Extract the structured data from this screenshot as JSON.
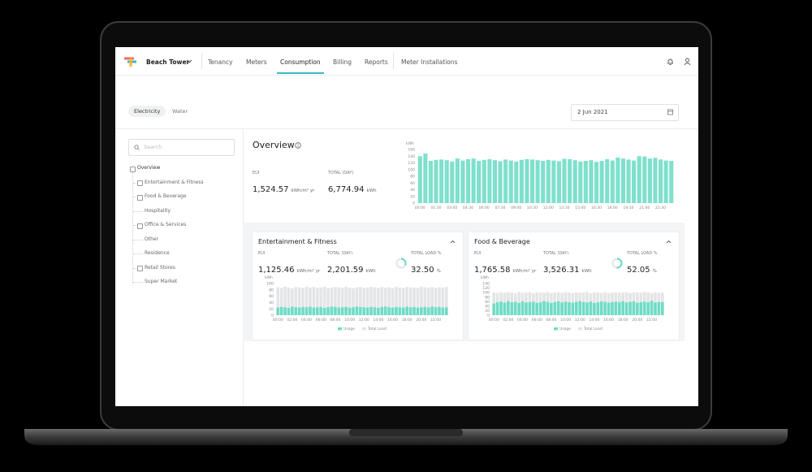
{
  "nav": {
    "property": "Beach Tower",
    "tabs": [
      "Tenancy",
      "Meters",
      "Consumption",
      "Billing",
      "Reports",
      "Meter Installations"
    ]
  },
  "utility_toggle": [
    "Electricity",
    "Water"
  ],
  "date": "2 Jun 2021",
  "sidebar": {
    "search_placeholder": "Search",
    "tree": [
      {
        "label": "Overview",
        "expandable": true,
        "level": 0
      },
      {
        "label": "Entertainment & Fitness",
        "expandable": true,
        "level": 1
      },
      {
        "label": "Food & Beverage",
        "expandable": true,
        "level": 1
      },
      {
        "label": "Hospitality",
        "expandable": false,
        "level": 1
      },
      {
        "label": "Office & Services",
        "expandable": true,
        "level": 1
      },
      {
        "label": "Other",
        "expandable": false,
        "level": 1
      },
      {
        "label": "Residence",
        "expandable": false,
        "level": 1
      },
      {
        "label": "Retail Stores",
        "expandable": true,
        "level": 1
      },
      {
        "label": "Super Market",
        "expandable": false,
        "level": 1
      }
    ]
  },
  "overview": {
    "title": "Overview",
    "stats": [
      {
        "label": "EUI",
        "value": "1,524.57",
        "unit": "kWh/m² yr"
      },
      {
        "label": "TOTAL (DAY)",
        "value": "6,774.94",
        "unit": "kWh"
      }
    ],
    "chart": {
      "type": "bar",
      "y_label": "kWh",
      "color": "#7fe0cc",
      "ylim": [
        0,
        160
      ],
      "yticks": [
        0,
        20,
        40,
        60,
        80,
        100,
        120,
        140,
        160
      ],
      "categories": [
        "00:00",
        null,
        null,
        "01:30",
        null,
        null,
        "03:00",
        null,
        null,
        "04:30",
        null,
        null,
        "06:00",
        null,
        null,
        "07:30",
        null,
        null,
        "09:00",
        null,
        null,
        "10:30",
        null,
        null,
        "12:00",
        null,
        null,
        "13:30",
        null,
        null,
        "15:00",
        null,
        null,
        "16:30",
        null,
        null,
        "18:00",
        null,
        null,
        "19:30",
        null,
        null,
        "21:00",
        null,
        null,
        "22:30",
        null,
        null
      ],
      "values": [
        140,
        148,
        126,
        129,
        130,
        128,
        124,
        133,
        127,
        131,
        133,
        126,
        129,
        131,
        128,
        125,
        130,
        127,
        124,
        129,
        131,
        130,
        128,
        126,
        129,
        127,
        125,
        132,
        131,
        128,
        124,
        126,
        128,
        123,
        126,
        131,
        127,
        136,
        133,
        130,
        127,
        140,
        139,
        133,
        135,
        130,
        127,
        126
      ]
    }
  },
  "cards": [
    {
      "title": "Entertainment & Fitness",
      "stats": [
        {
          "label": "EUI",
          "value": "1,125.46",
          "unit": "kWh/m² yr"
        },
        {
          "label": "TOTAL (DAY)",
          "value": "2,201.59",
          "unit": "kWh"
        }
      ],
      "load": {
        "label": "TOTAL LOAD %",
        "value": 32.5,
        "value_label": "32.50",
        "unit": "%"
      },
      "chart": {
        "type": "bar",
        "y_label": "kWh",
        "legend": "bottom",
        "ylim": [
          0,
          100
        ],
        "yticks": [
          0,
          20,
          40,
          60,
          80,
          100
        ],
        "categories": [
          "00:00",
          null,
          null,
          null,
          "02:00",
          null,
          null,
          null,
          "04:00",
          null,
          null,
          null,
          "06:00",
          null,
          null,
          null,
          "08:00",
          null,
          null,
          null,
          "10:00",
          null,
          null,
          null,
          "12:00",
          null,
          null,
          null,
          "14:00",
          null,
          null,
          null,
          "16:00",
          null,
          null,
          null,
          "18:00",
          null,
          null,
          null,
          "20:00",
          null,
          null,
          null,
          "22:00",
          null,
          null,
          null
        ],
        "series": [
          {
            "name": "Usage",
            "color": "#6fdcc6",
            "values": [
              24,
              26,
              25,
              23,
              27,
              25,
              24,
              26,
              25,
              27,
              24,
              25,
              26,
              23,
              25,
              27,
              26,
              24,
              25,
              26,
              24,
              25,
              27,
              26,
              25,
              24,
              26,
              25,
              23,
              26,
              27,
              25,
              24,
              26,
              25,
              24,
              27,
              25,
              26,
              24,
              25,
              26,
              24,
              27,
              25,
              26,
              24,
              25
            ]
          },
          {
            "name": "Total Load",
            "color": "#e3e5e7",
            "values": [
              88,
              86,
              90,
              87,
              85,
              89,
              88,
              86,
              90,
              87,
              89,
              86,
              88,
              90,
              85,
              87,
              89,
              88,
              86,
              90,
              87,
              85,
              88,
              89,
              86,
              87,
              90,
              88,
              86,
              89,
              87,
              88,
              85,
              90,
              87,
              86,
              89,
              88,
              87,
              86,
              90,
              88,
              87,
              89,
              86,
              88,
              87,
              89
            ]
          }
        ]
      }
    },
    {
      "title": "Food & Beverage",
      "stats": [
        {
          "label": "EUI",
          "value": "1,765.58",
          "unit": "kWh/m² yr"
        },
        {
          "label": "TOTAL (DAY)",
          "value": "3,526.31",
          "unit": "kWh"
        }
      ],
      "load": {
        "label": "TOTAL LOAD %",
        "value": 52.05,
        "value_label": "52.05",
        "unit": "%"
      },
      "chart": {
        "type": "bar",
        "y_label": "kWh",
        "legend": "bottom",
        "ylim": [
          0,
          140
        ],
        "yticks": [
          0,
          20,
          40,
          60,
          80,
          100,
          120,
          140
        ],
        "categories": [
          "00:00",
          null,
          null,
          null,
          "02:00",
          null,
          null,
          null,
          "04:00",
          null,
          null,
          null,
          "06:00",
          null,
          null,
          null,
          "08:00",
          null,
          null,
          null,
          "10:00",
          null,
          null,
          null,
          "12:00",
          null,
          null,
          null,
          "14:00",
          null,
          null,
          null,
          "16:00",
          null,
          null,
          null,
          "18:00",
          null,
          null,
          null,
          "20:00",
          null,
          null,
          null,
          "22:00",
          null,
          null,
          null
        ],
        "series": [
          {
            "name": "Usage",
            "color": "#6fdcc6",
            "values": [
              52,
              58,
              60,
              55,
              62,
              57,
              59,
              54,
              61,
              56,
              58,
              60,
              55,
              57,
              62,
              59,
              54,
              58,
              61,
              56,
              60,
              57,
              55,
              59,
              62,
              58,
              56,
              60,
              54,
              57,
              61,
              59,
              55,
              58,
              60,
              57,
              62,
              56,
              59,
              61,
              55,
              58,
              60,
              57,
              63,
              56,
              59,
              58
            ]
          },
          {
            "name": "Total Load",
            "color": "#e3e5e7",
            "values": [
              100,
              98,
              102,
              99,
              101,
              100,
              97,
              103,
              99,
              100,
              102,
              98,
              101,
              99,
              100,
              103,
              98,
              100,
              101,
              99,
              102,
              100,
              98,
              101,
              99,
              100,
              103,
              97,
              100,
              101,
              99,
              102,
              98,
              100,
              101,
              99,
              100,
              102,
              98,
              101,
              100,
              99,
              103,
              100,
              98,
              101,
              99,
              100
            ]
          }
        ]
      }
    }
  ]
}
